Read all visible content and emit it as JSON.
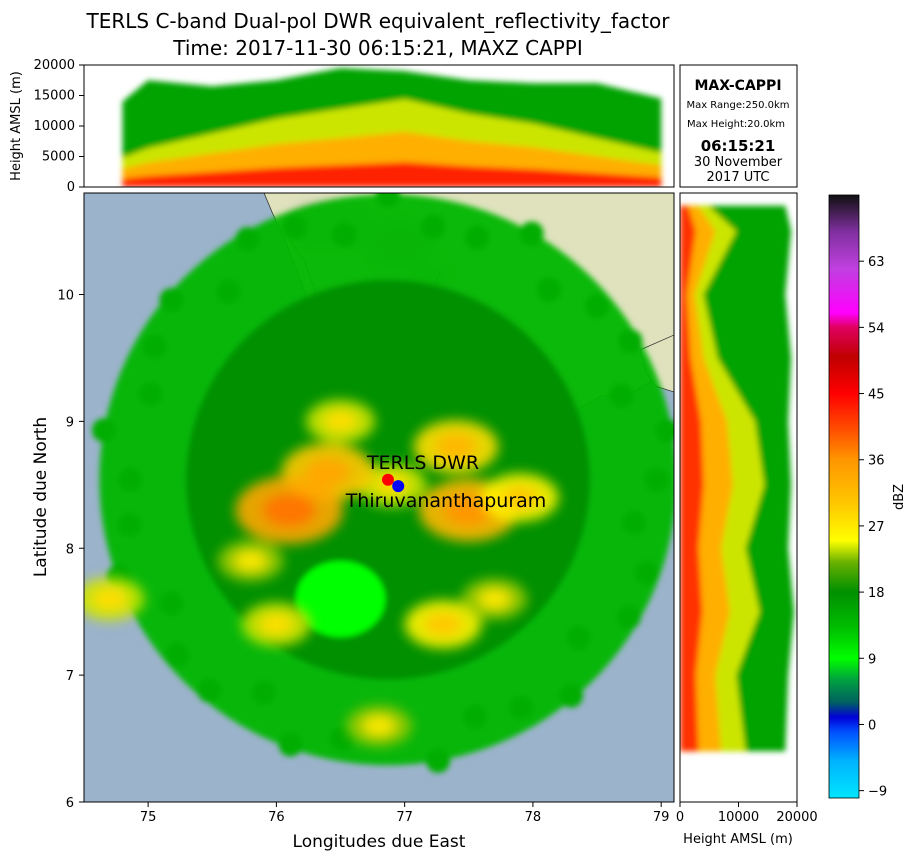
{
  "title": {
    "line1": "TERLS C-band Dual-pol DWR equivalent_reflectivity_factor",
    "line2": "Time: 2017-11-30 06:15:21, MAXZ CAPPI"
  },
  "info_box": {
    "heading": "MAX-CAPPI",
    "max_range": "Max Range:250.0km",
    "max_height": "Max Height:20.0km",
    "time": "06:15:21",
    "date_line1": "30 November",
    "date_line2": "2017 UTC"
  },
  "annotations": {
    "radar_label": "TERLS DWR",
    "city_label": "Thiruvananthapuram",
    "radar_marker_color": "#ff0000",
    "city_marker_color": "#0000ff",
    "radar_position": {
      "lon": 76.87,
      "lat": 8.54
    },
    "city_position": {
      "lon": 76.95,
      "lat": 8.49
    }
  },
  "colors": {
    "sea": "#9bb3cb",
    "land": "#dfe2bd"
  },
  "chart_data": [
    {
      "id": "map",
      "type": "heatmap",
      "xlabel": "Longitudes due East",
      "ylabel": "Latitude due North",
      "xlim": [
        74.5,
        79.1
      ],
      "ylim": [
        6.0,
        10.8
      ],
      "xticks": [
        75,
        76,
        77,
        78,
        79
      ],
      "yticks": [
        6,
        7,
        8,
        9,
        10
      ],
      "xtick_labels": [
        "75",
        "76",
        "77",
        "78",
        "79"
      ],
      "ytick_labels": [
        "6",
        "7",
        "8",
        "9",
        "10"
      ],
      "radar_center": [
        76.87,
        8.54
      ],
      "max_range_deg": 2.25,
      "echo_features": [
        {
          "lon": 76.9,
          "lat": 8.5,
          "dbz": 28
        },
        {
          "lon": 76.4,
          "lat": 8.6,
          "dbz": 34
        },
        {
          "lon": 76.1,
          "lat": 8.3,
          "dbz": 38
        },
        {
          "lon": 77.5,
          "lat": 8.3,
          "dbz": 36
        },
        {
          "lon": 77.9,
          "lat": 8.4,
          "dbz": 30
        },
        {
          "lon": 76.5,
          "lat": 9.0,
          "dbz": 28
        },
        {
          "lon": 77.4,
          "lat": 8.8,
          "dbz": 32
        },
        {
          "lon": 75.8,
          "lat": 7.9,
          "dbz": 27
        },
        {
          "lon": 76.0,
          "lat": 7.4,
          "dbz": 28
        },
        {
          "lon": 77.3,
          "lat": 7.4,
          "dbz": 30
        },
        {
          "lon": 77.7,
          "lat": 7.6,
          "dbz": 27
        },
        {
          "lon": 76.8,
          "lat": 6.6,
          "dbz": 27
        },
        {
          "lon": 74.7,
          "lat": 7.6,
          "dbz": 28
        }
      ]
    },
    {
      "id": "top-profile",
      "type": "area",
      "ylabel": "Height AMSL (m)",
      "ylim": [
        0,
        20000
      ],
      "yticks": [
        0,
        5000,
        10000,
        15000,
        20000
      ],
      "ytick_labels": [
        "0",
        "5000",
        "10000",
        "15000",
        "20000"
      ],
      "x": [
        74.8,
        75.0,
        75.5,
        76.0,
        76.5,
        77.0,
        77.5,
        78.0,
        78.5,
        79.0
      ],
      "echo_top_m": [
        14000,
        17500,
        16500,
        17500,
        19500,
        19000,
        17500,
        17000,
        17000,
        14500
      ],
      "core_top_m": [
        3000,
        4000,
        5500,
        7000,
        8000,
        9000,
        7500,
        6500,
        5000,
        3500
      ]
    },
    {
      "id": "side-profile",
      "type": "area",
      "xlabel": "Height AMSL (m)",
      "xlim": [
        0,
        20000
      ],
      "xticks": [
        0,
        10000,
        20000
      ],
      "xtick_labels": [
        "0",
        "10000",
        "20000"
      ],
      "y": [
        6.4,
        7.0,
        7.5,
        8.0,
        8.5,
        9.0,
        9.5,
        10.0,
        10.5,
        10.7
      ],
      "echo_top_m": [
        18000,
        18500,
        19500,
        18500,
        19000,
        18500,
        19000,
        18000,
        19000,
        18000
      ],
      "core_top_m": [
        7000,
        6000,
        8500,
        7000,
        9000,
        8000,
        4000,
        2500,
        6000,
        3000
      ]
    },
    {
      "id": "colorbar",
      "type": "heatmap",
      "label": "dBZ",
      "range": [
        -10,
        72
      ],
      "ticks": [
        -9,
        0,
        9,
        18,
        27,
        36,
        45,
        54,
        63
      ],
      "tick_labels": [
        "−9",
        "0",
        "9",
        "18",
        "27",
        "36",
        "45",
        "54",
        "63"
      ],
      "stops": [
        {
          "dbz": -10,
          "color": "#00e5ff"
        },
        {
          "dbz": -5,
          "color": "#00b4ff"
        },
        {
          "dbz": -1,
          "color": "#0050ff"
        },
        {
          "dbz": 1,
          "color": "#0000d8"
        },
        {
          "dbz": 3,
          "color": "#006060"
        },
        {
          "dbz": 6,
          "color": "#00a040"
        },
        {
          "dbz": 9,
          "color": "#00ff00"
        },
        {
          "dbz": 13,
          "color": "#00c000"
        },
        {
          "dbz": 18,
          "color": "#009000"
        },
        {
          "dbz": 22,
          "color": "#66b000"
        },
        {
          "dbz": 25,
          "color": "#ffff00"
        },
        {
          "dbz": 30,
          "color": "#ffc800"
        },
        {
          "dbz": 36,
          "color": "#ff9600"
        },
        {
          "dbz": 40,
          "color": "#ff5000"
        },
        {
          "dbz": 45,
          "color": "#ff0000"
        },
        {
          "dbz": 50,
          "color": "#c00000"
        },
        {
          "dbz": 54,
          "color": "#e00060"
        },
        {
          "dbz": 56,
          "color": "#ff00ff"
        },
        {
          "dbz": 62,
          "color": "#c040e0"
        },
        {
          "dbz": 67,
          "color": "#8030a0"
        },
        {
          "dbz": 72,
          "color": "#101010"
        }
      ]
    }
  ]
}
